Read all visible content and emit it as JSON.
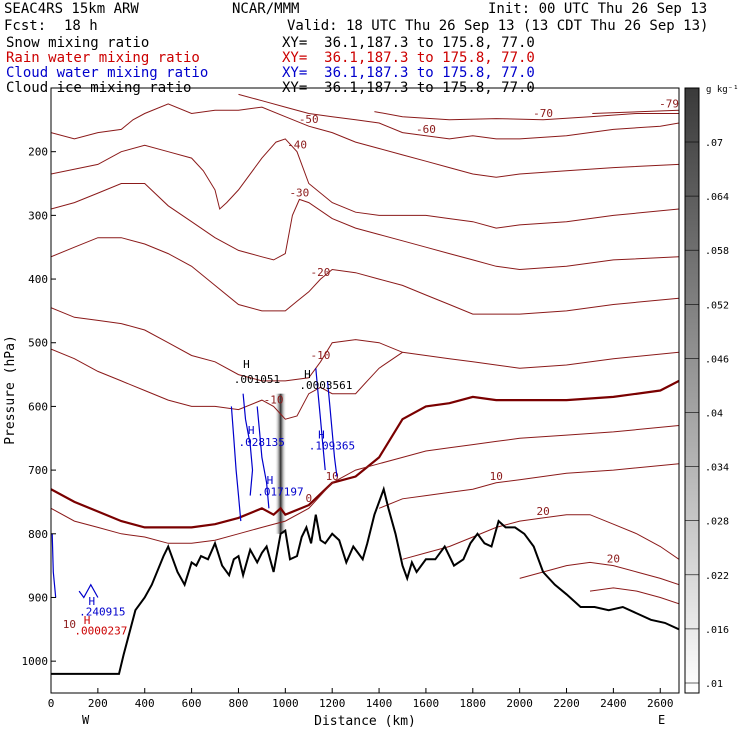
{
  "header": {
    "model": "SEAC4RS 15km ARW",
    "org": "NCAR/MMM",
    "init": "Init: 00 UTC Thu 26 Sep 13",
    "fcst_label": "Fcst:",
    "fcst_value": "18 h",
    "valid": "Valid: 18 UTC Thu 26 Sep 13 (13 CDT Thu 26 Sep 13)"
  },
  "legend": [
    {
      "label": "Snow mixing ratio",
      "color": "#000000",
      "xy": "XY=  36.1,187.3 to 175.8, 77.0"
    },
    {
      "label": "Rain water mixing ratio",
      "color": "#cc0000",
      "xy": "XY=  36.1,187.3 to 175.8, 77.0"
    },
    {
      "label": "Cloud water mixing ratio",
      "color": "#0000cc",
      "xy": "XY=  36.1,187.3 to 175.8, 77.0"
    },
    {
      "label": "Cloud ice mixing ratio",
      "color": "#000000",
      "xy": "XY=  36.1,187.3 to 175.8, 77.0"
    }
  ],
  "colorbar": {
    "unit": "g kg⁻¹",
    "ticks": [
      ".07",
      ".064",
      ".058",
      ".052",
      ".046",
      ".04",
      ".034",
      ".028",
      ".022",
      ".016",
      ".01"
    ]
  },
  "chart_data": {
    "type": "contour",
    "xlabel": "Distance (km)",
    "ylabel": "Pressure (hPa)",
    "xlim": [
      0,
      2680
    ],
    "ylim": [
      1050,
      100
    ],
    "x_ticks": [
      0,
      200,
      400,
      600,
      800,
      1000,
      1200,
      1400,
      1600,
      1800,
      2000,
      2200,
      2400,
      2600
    ],
    "y_ticks": [
      200,
      300,
      400,
      500,
      600,
      700,
      800,
      900,
      1000
    ],
    "left_label": "W",
    "right_label": "E",
    "grid": false,
    "contour_color": "#8b1a1a",
    "terrain": {
      "color": "#000000",
      "x": [
        0,
        290,
        310,
        360,
        400,
        430,
        480,
        500,
        540,
        570,
        600,
        620,
        640,
        670,
        700,
        730,
        760,
        780,
        800,
        820,
        850,
        880,
        900,
        920,
        950,
        980,
        1000,
        1020,
        1050,
        1070,
        1090,
        1110,
        1130,
        1150,
        1170,
        1200,
        1230,
        1260,
        1290,
        1310,
        1330,
        1350,
        1380,
        1400,
        1420,
        1440,
        1470,
        1500,
        1520,
        1540,
        1560,
        1600,
        1640,
        1680,
        1720,
        1760,
        1790,
        1820,
        1850,
        1880,
        1910,
        1940,
        1980,
        2020,
        2060,
        2100,
        2150,
        2200,
        2260,
        2320,
        2380,
        2440,
        2500,
        2560,
        2620,
        2680
      ],
      "p": [
        1020,
        1020,
        990,
        920,
        900,
        880,
        835,
        820,
        860,
        880,
        845,
        850,
        835,
        840,
        815,
        850,
        865,
        840,
        835,
        865,
        825,
        845,
        830,
        820,
        860,
        800,
        795,
        840,
        835,
        805,
        790,
        815,
        770,
        810,
        815,
        800,
        810,
        845,
        820,
        830,
        840,
        815,
        770,
        750,
        730,
        760,
        800,
        850,
        870,
        845,
        860,
        840,
        840,
        820,
        850,
        840,
        815,
        800,
        815,
        820,
        780,
        790,
        790,
        800,
        820,
        860,
        880,
        895,
        915,
        915,
        920,
        915,
        925,
        935,
        940,
        950
      ]
    },
    "isotherms": [
      {
        "label": "-79.16",
        "x": [
          2310,
          2680
        ],
        "p": [
          140,
          135
        ]
      },
      {
        "label": "-70",
        "x": [
          1380,
          1500,
          1700,
          1900,
          2100,
          2300,
          2500,
          2680
        ],
        "p": [
          137,
          145,
          150,
          148,
          150,
          145,
          140,
          140
        ]
      },
      {
        "label": "-60",
        "x": [
          800,
          900,
          1000,
          1100,
          1200,
          1300,
          1400,
          1500,
          1600,
          1700,
          1800,
          1900,
          2000,
          2200,
          2400,
          2600,
          2680
        ],
        "p": [
          110,
          120,
          130,
          140,
          145,
          150,
          155,
          170,
          175,
          180,
          175,
          180,
          180,
          175,
          165,
          160,
          155
        ]
      },
      {
        "label": "-50",
        "x": [
          0,
          100,
          200,
          300,
          350,
          400,
          500,
          600,
          700,
          800,
          900,
          1000,
          1100,
          1200,
          1300,
          1400,
          1500,
          1600,
          1700,
          1800,
          1900,
          2000,
          2200,
          2400,
          2680
        ],
        "p": [
          170,
          180,
          170,
          165,
          150,
          140,
          125,
          140,
          135,
          135,
          130,
          145,
          160,
          170,
          185,
          195,
          205,
          215,
          225,
          235,
          240,
          235,
          230,
          225,
          220
        ]
      },
      {
        "label": "-40",
        "x": [
          0,
          200,
          300,
          400,
          500,
          600,
          650,
          700,
          720,
          750,
          800,
          900,
          960,
          1000,
          1050,
          1100,
          1200,
          1300,
          1400,
          1500,
          1600,
          1700,
          1800,
          1900,
          2000,
          2200,
          2400,
          2680
        ],
        "p": [
          235,
          220,
          200,
          190,
          200,
          210,
          230,
          260,
          290,
          280,
          260,
          210,
          185,
          180,
          200,
          250,
          280,
          295,
          300,
          300,
          300,
          305,
          310,
          320,
          315,
          310,
          300,
          290
        ]
      },
      {
        "label": "-30",
        "x": [
          0,
          100,
          200,
          300,
          400,
          500,
          600,
          700,
          800,
          900,
          950,
          1000,
          1030,
          1060,
          1100,
          1200,
          1300,
          1400,
          1500,
          1600,
          1700,
          1800,
          1900,
          2000,
          2200,
          2400,
          2680
        ],
        "p": [
          290,
          280,
          265,
          250,
          250,
          285,
          310,
          335,
          355,
          365,
          370,
          360,
          300,
          275,
          280,
          305,
          320,
          330,
          340,
          350,
          360,
          370,
          380,
          385,
          380,
          370,
          365
        ]
      },
      {
        "label": "-20",
        "x": [
          0,
          100,
          200,
          300,
          400,
          500,
          600,
          700,
          800,
          900,
          1000,
          1050,
          1100,
          1150,
          1200,
          1300,
          1400,
          1500,
          1600,
          1700,
          1800,
          1900,
          2000,
          2200,
          2400,
          2680
        ],
        "p": [
          365,
          350,
          335,
          335,
          345,
          360,
          380,
          410,
          440,
          450,
          450,
          435,
          420,
          400,
          385,
          390,
          400,
          410,
          425,
          440,
          455,
          455,
          455,
          450,
          440,
          430
        ]
      },
      {
        "label": "-10",
        "x": [
          0,
          100,
          200,
          300,
          400,
          500,
          600,
          700,
          800,
          900,
          1000,
          1100,
          1150,
          1200,
          1300,
          1400,
          1500,
          1600,
          1700,
          1800,
          1900,
          2000,
          2200,
          2400,
          2680
        ],
        "p": [
          445,
          460,
          465,
          470,
          480,
          500,
          520,
          530,
          550,
          560,
          560,
          555,
          530,
          500,
          495,
          500,
          515,
          520,
          525,
          530,
          535,
          540,
          535,
          525,
          515
        ]
      },
      {
        "label": "-10",
        "x": [
          0,
          100,
          200,
          300,
          400,
          500,
          600,
          700,
          800,
          900,
          950,
          1000,
          1050,
          1100,
          1150,
          1200,
          1300,
          1350,
          1400,
          1500
        ],
        "p": [
          510,
          525,
          545,
          560,
          575,
          590,
          600,
          600,
          605,
          590,
          600,
          620,
          615,
          580,
          570,
          580,
          580,
          560,
          540,
          515
        ]
      },
      {
        "label": "0",
        "x": [
          0,
          100,
          200,
          300,
          400,
          500,
          600,
          700,
          800,
          900,
          950,
          980,
          1000,
          1100,
          1200,
          1300,
          1400,
          1500,
          1600,
          1700,
          1800,
          1900,
          2000,
          2200,
          2400,
          2600,
          2680
        ],
        "p": [
          730,
          750,
          765,
          780,
          790,
          790,
          790,
          785,
          775,
          760,
          770,
          760,
          770,
          755,
          720,
          710,
          680,
          620,
          600,
          595,
          585,
          590,
          590,
          590,
          585,
          575,
          560
        ]
      },
      {
        "label": "10",
        "x": [
          0,
          100,
          200,
          300,
          400,
          500,
          600,
          700,
          800,
          900,
          1000,
          1100,
          1200,
          1300,
          1400,
          1500,
          1600,
          1700,
          1800,
          1900,
          2000,
          2200,
          2400,
          2680
        ],
        "p": [
          760,
          780,
          790,
          800,
          805,
          815,
          815,
          810,
          800,
          790,
          780,
          760,
          720,
          700,
          690,
          680,
          670,
          665,
          660,
          655,
          650,
          645,
          640,
          630
        ]
      },
      {
        "label": "10",
        "x": [
          1400,
          1500,
          1600,
          1700,
          1800,
          1900,
          2000,
          2200,
          2400,
          2680
        ],
        "p": [
          760,
          745,
          740,
          735,
          730,
          720,
          715,
          705,
          700,
          690
        ]
      },
      {
        "label": "20",
        "x": [
          1500,
          1600,
          1700,
          1800,
          1900,
          2000,
          2100,
          2200,
          2300,
          2400,
          2500,
          2600,
          2680
        ],
        "p": [
          840,
          830,
          820,
          805,
          790,
          780,
          775,
          770,
          770,
          785,
          800,
          820,
          840
        ]
      },
      {
        "label": "20",
        "x": [
          2000,
          2100,
          2200,
          2300,
          2400,
          2500,
          2600,
          2680
        ],
        "p": [
          870,
          860,
          850,
          845,
          850,
          860,
          870,
          880
        ]
      },
      {
        "label": "",
        "x": [
          2300,
          2400,
          2500,
          2600,
          2680
        ],
        "p": [
          890,
          885,
          890,
          900,
          910
        ]
      }
    ],
    "zero_isotherm_highlight": {
      "label": "0",
      "color": "#7a0000"
    },
    "cloud_water_contours": {
      "color": "#0000cc",
      "polylines": [
        {
          "x": [
            770,
            780,
            790,
            800,
            810
          ],
          "p": [
            600,
            650,
            700,
            740,
            780
          ]
        },
        {
          "x": [
            820,
            830,
            850,
            860,
            850
          ],
          "p": [
            580,
            620,
            660,
            700,
            740
          ]
        },
        {
          "x": [
            880,
            890,
            900,
            920,
            930
          ],
          "p": [
            600,
            640,
            680,
            720,
            760
          ]
        },
        {
          "x": [
            1130,
            1140,
            1150,
            1160,
            1170
          ],
          "p": [
            540,
            580,
            620,
            660,
            700
          ]
        },
        {
          "x": [
            1180,
            1190,
            1200,
            1210,
            1220
          ],
          "p": [
            560,
            600,
            640,
            680,
            710
          ]
        },
        {
          "x": [
            5,
            10,
            20
          ],
          "p": [
            800,
            860,
            900
          ]
        },
        {
          "x": [
            120,
            140,
            170,
            200
          ],
          "p": [
            890,
            900,
            880,
            900
          ]
        }
      ]
    },
    "rain_shading": {
      "x_center": 980,
      "x_halfwidth": 25,
      "p_top": 580,
      "p_bottom": 800
    },
    "annotations": [
      {
        "text": "H",
        "x": 820,
        "p": 540,
        "color": "#000000"
      },
      {
        "text": ".001051",
        "x": 780,
        "p": 563,
        "color": "#000000"
      },
      {
        "text": "H",
        "x": 1080,
        "p": 555,
        "color": "#000000"
      },
      {
        "text": ".0003561",
        "x": 1060,
        "p": 573,
        "color": "#000000"
      },
      {
        "text": "H",
        "x": 840,
        "p": 643,
        "color": "#0000cc"
      },
      {
        "text": ".028135",
        "x": 800,
        "p": 662,
        "color": "#0000cc"
      },
      {
        "text": "H",
        "x": 1140,
        "p": 650,
        "color": "#0000cc"
      },
      {
        "text": ".109365",
        "x": 1100,
        "p": 668,
        "color": "#0000cc"
      },
      {
        "text": "H",
        "x": 920,
        "p": 722,
        "color": "#0000cc"
      },
      {
        "text": ".017197",
        "x": 880,
        "p": 740,
        "color": "#0000cc"
      },
      {
        "text": "H",
        "x": 160,
        "p": 912,
        "color": "#0000cc"
      },
      {
        "text": ".240915",
        "x": 120,
        "p": 928,
        "color": "#0000cc"
      },
      {
        "text": "H",
        "x": 140,
        "p": 942,
        "color": "#cc0000"
      },
      {
        "text": ".0000237",
        "x": 100,
        "p": 958,
        "color": "#cc0000"
      },
      {
        "text": "10",
        "x": 50,
        "p": 948,
        "color": "#8b1a1a"
      }
    ]
  }
}
